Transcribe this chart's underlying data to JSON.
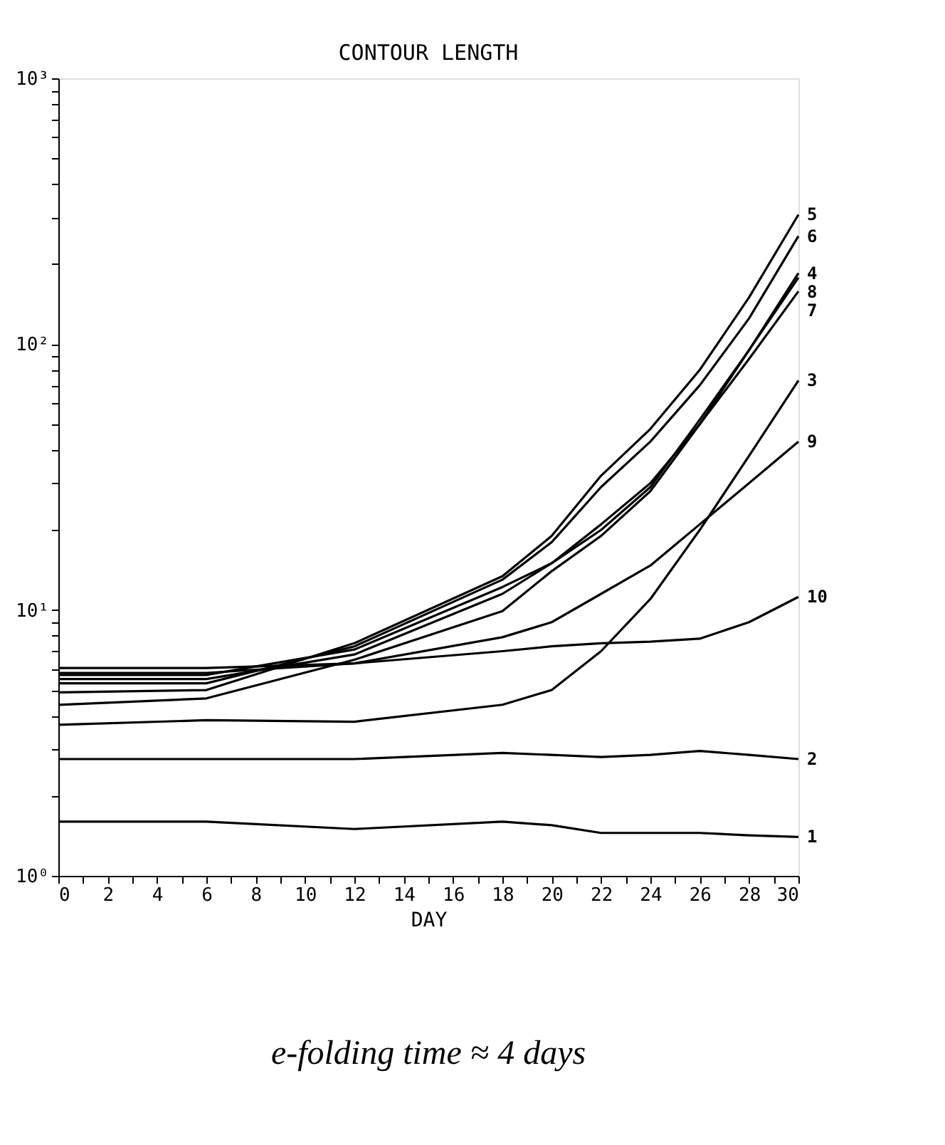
{
  "chart_data": {
    "type": "line",
    "title": "CONTOUR LENGTH",
    "xlabel": "DAY",
    "log": "y",
    "grid": false,
    "marker": "none",
    "line_style": "solid",
    "x": [
      0,
      6,
      12,
      18,
      20,
      22,
      24,
      26,
      28,
      30
    ],
    "xlim": [
      0,
      30
    ],
    "xticks": [
      0,
      {
        "value": 1,
        "label": null
      },
      2,
      {
        "value": 3,
        "label": null
      },
      4,
      {
        "value": 5,
        "label": null
      },
      6,
      {
        "value": 7,
        "label": null
      },
      8,
      {
        "value": 9,
        "label": null
      },
      10,
      {
        "value": 11,
        "label": null
      },
      12,
      {
        "value": 13,
        "label": null
      },
      14,
      {
        "value": 15,
        "label": null
      },
      16,
      {
        "value": 17,
        "label": null
      },
      18,
      {
        "value": 19,
        "label": null
      },
      20,
      {
        "value": 21,
        "label": null
      },
      22,
      {
        "value": 23,
        "label": null
      },
      24,
      {
        "value": 25,
        "label": null
      },
      26,
      {
        "value": 27,
        "label": null
      },
      28,
      {
        "value": 29,
        "label": null
      },
      30
    ],
    "ylim": [
      1,
      1000
    ],
    "yticks": [
      {
        "value": 1,
        "label": "10⁰"
      },
      {
        "value": 2,
        "label": null
      },
      {
        "value": 3,
        "label": null
      },
      {
        "value": 4,
        "label": null
      },
      {
        "value": 5,
        "label": null
      },
      {
        "value": 6,
        "label": null
      },
      {
        "value": 7,
        "label": null
      },
      {
        "value": 8,
        "label": null
      },
      {
        "value": 9,
        "label": null
      },
      {
        "value": 10,
        "label": "10¹"
      },
      {
        "value": 20,
        "label": null
      },
      {
        "value": 30,
        "label": null
      },
      {
        "value": 40,
        "label": null
      },
      {
        "value": 50,
        "label": null
      },
      {
        "value": 60,
        "label": null
      },
      {
        "value": 70,
        "label": null
      },
      {
        "value": 80,
        "label": null
      },
      {
        "value": 90,
        "label": null
      },
      {
        "value": 100,
        "label": "10²"
      },
      {
        "value": 200,
        "label": null
      },
      {
        "value": 300,
        "label": null
      },
      {
        "value": 400,
        "label": null
      },
      {
        "value": 500,
        "label": null
      },
      {
        "value": 600,
        "label": null
      },
      {
        "value": 700,
        "label": null
      },
      {
        "value": 800,
        "label": null
      },
      {
        "value": 900,
        "label": null
      },
      {
        "value": 1000,
        "label": "10³"
      }
    ],
    "series": [
      {
        "name": "1",
        "color": "#000000",
        "values": [
          1.6,
          1.6,
          1.5,
          1.6,
          1.55,
          1.45,
          1.45,
          1.45,
          1.42,
          1.4
        ]
      },
      {
        "name": "2",
        "color": "#000000",
        "values": [
          2.75,
          2.75,
          2.75,
          2.9,
          2.85,
          2.8,
          2.85,
          2.95,
          2.85,
          2.75
        ]
      },
      {
        "name": "3",
        "color": "#000000",
        "values": [
          3.7,
          3.85,
          3.8,
          4.4,
          5.0,
          7.0,
          11,
          20,
          38,
          73
        ]
      },
      {
        "name": "4",
        "color": "#000000",
        "values": [
          4.4,
          4.65,
          6.5,
          9.9,
          14,
          19,
          28,
          50,
          95,
          185
        ]
      },
      {
        "name": "5",
        "color": "#000000",
        "values": [
          4.9,
          5.0,
          7.5,
          13.4,
          19,
          32,
          48,
          80,
          150,
          307
        ]
      },
      {
        "name": "6",
        "color": "#000000",
        "values": [
          5.3,
          5.3,
          7.3,
          13,
          18,
          29,
          43,
          70,
          125,
          255
        ]
      },
      {
        "name": "7",
        "color": "#000000",
        "values": [
          5.5,
          5.5,
          6.8,
          11.5,
          15,
          21,
          30,
          50,
          88,
          158
        ]
      },
      {
        "name": "8",
        "color": "#000000",
        "values": [
          5.7,
          5.7,
          7.1,
          12.2,
          15,
          20,
          29,
          52,
          95,
          178
        ]
      },
      {
        "name": "9",
        "color": "#000000",
        "values": [
          5.8,
          5.8,
          6.3,
          7.9,
          9,
          11.5,
          14.7,
          21,
          30,
          43
        ]
      },
      {
        "name": "10",
        "color": "#000000",
        "values": [
          6.05,
          6.05,
          6.3,
          7.0,
          7.3,
          7.5,
          7.6,
          7.8,
          9.0,
          11.2
        ]
      }
    ],
    "annotations": [
      "e-folding time ≈ 4 days"
    ]
  }
}
